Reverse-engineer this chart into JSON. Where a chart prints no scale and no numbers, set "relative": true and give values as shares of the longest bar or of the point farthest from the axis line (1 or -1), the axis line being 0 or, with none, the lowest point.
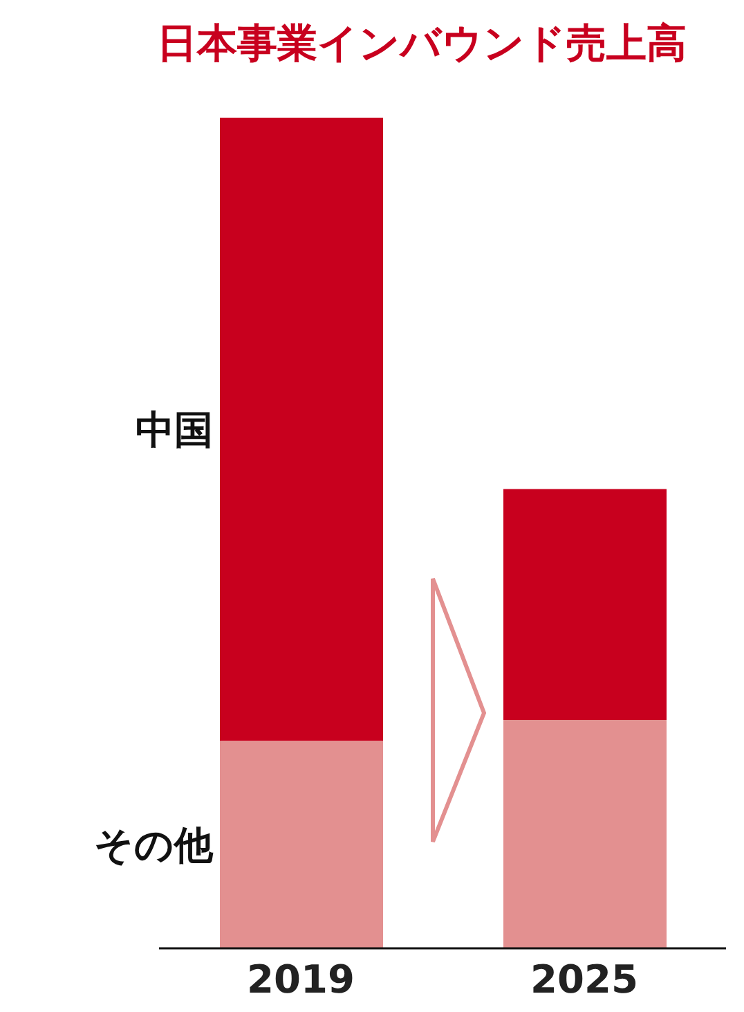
{
  "chart_data": {
    "type": "bar",
    "title": "日本事業インバウンド売上高",
    "relative": true,
    "stacked": true,
    "legend": false,
    "grid": false,
    "categories": [
      "2019",
      "2025"
    ],
    "series": [
      {
        "name": "その他",
        "color": "#e39090",
        "values": [
          0.25,
          0.275
        ]
      },
      {
        "name": "中国",
        "color": "#c8001e",
        "values": [
          0.75,
          0.278
        ]
      }
    ]
  }
}
